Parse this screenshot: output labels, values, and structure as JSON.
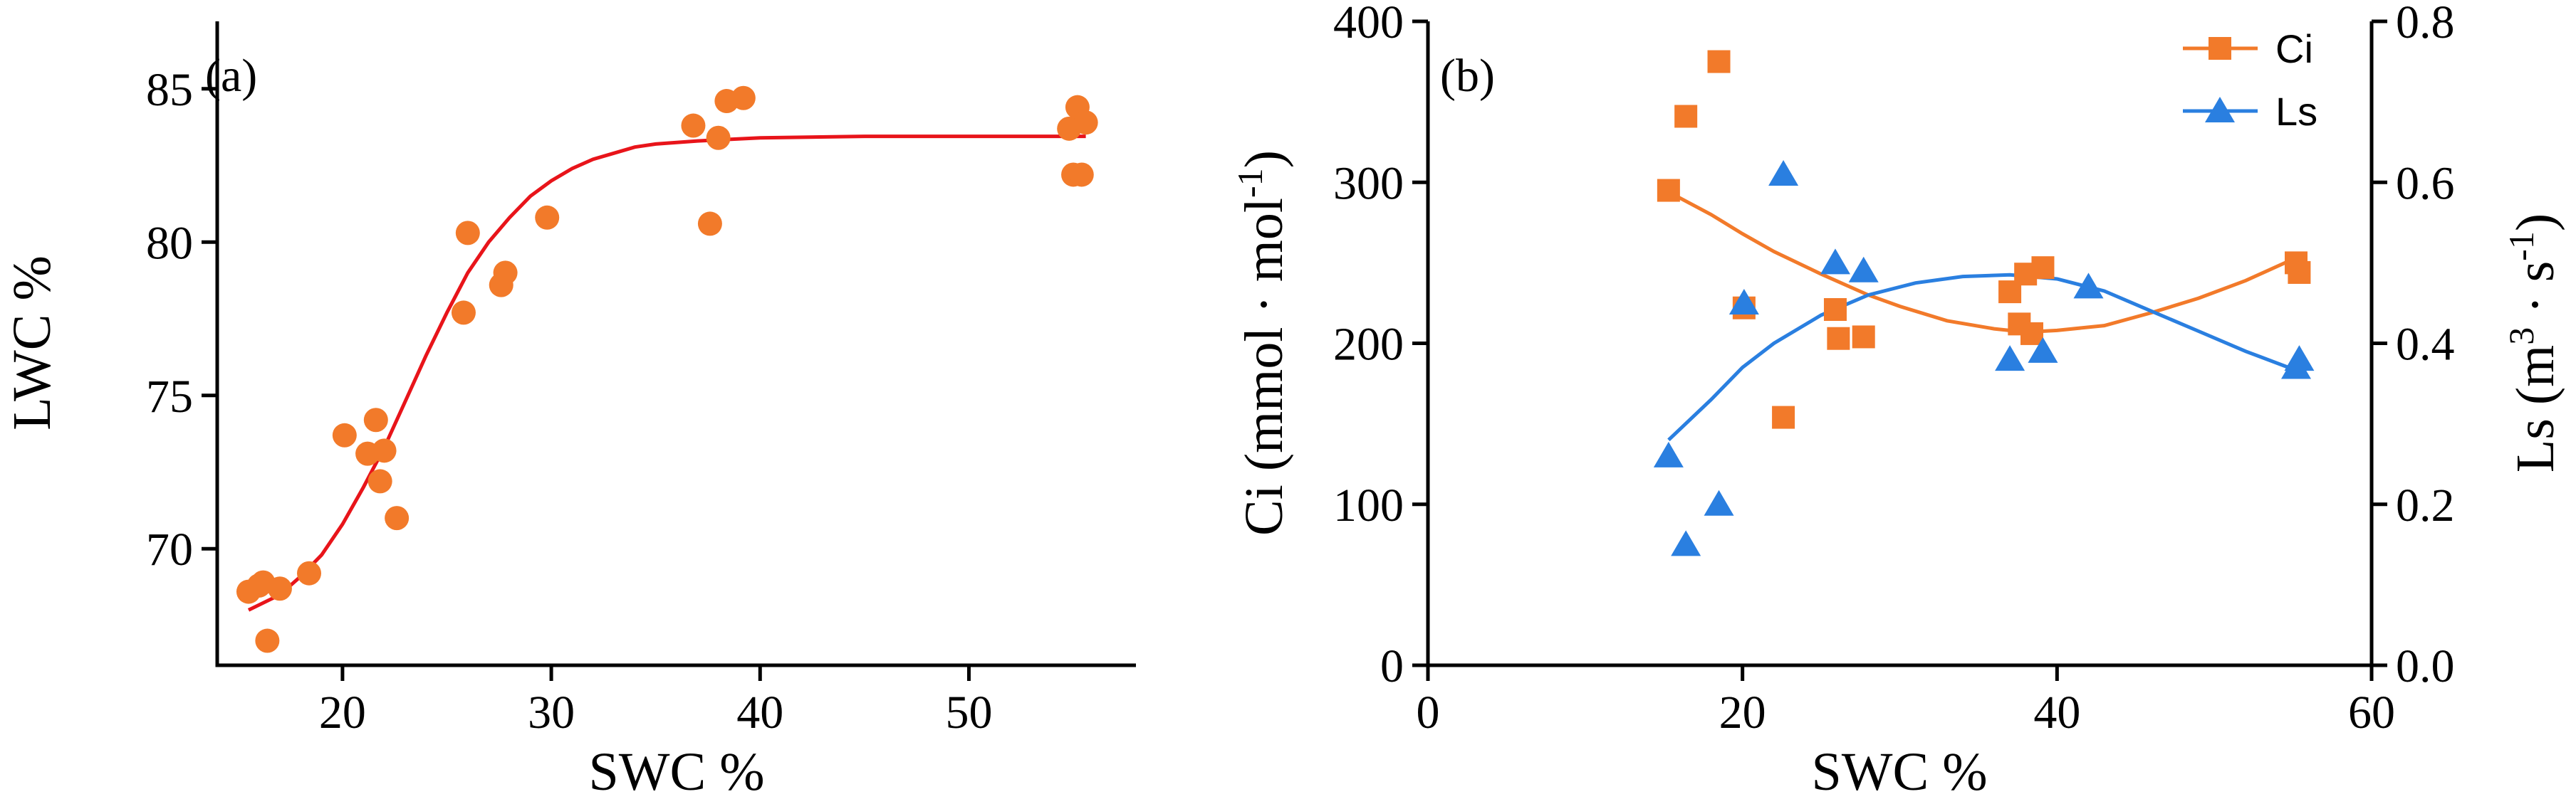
{
  "colors": {
    "orange": "#F27A2A",
    "blue": "#2A7FE0",
    "red": "#E8141A",
    "axis": "#000000"
  },
  "chart_data": [
    {
      "type": "scatter",
      "panel_label": "(a)",
      "xlabel": "SWC %",
      "ylabel": "LWC %",
      "xlim": [
        14,
        58
      ],
      "ylim": [
        66.2,
        87.2
      ],
      "xticks": [
        20,
        30,
        40,
        50
      ],
      "yticks": [
        70,
        75,
        80,
        85
      ],
      "grid": false,
      "series": [
        {
          "marker": "circle",
          "color": "#F27A2A",
          "points": [
            [
              15.5,
              68.6
            ],
            [
              16.0,
              68.8
            ],
            [
              16.4,
              67.0
            ],
            [
              16.2,
              68.9
            ],
            [
              17.0,
              68.7
            ],
            [
              18.4,
              69.2
            ],
            [
              20.1,
              73.7
            ],
            [
              21.2,
              73.1
            ],
            [
              21.6,
              74.2
            ],
            [
              21.8,
              72.2
            ],
            [
              22.0,
              73.2
            ],
            [
              22.6,
              71.0
            ],
            [
              25.8,
              77.7
            ],
            [
              26.0,
              80.3
            ],
            [
              27.6,
              78.6
            ],
            [
              27.8,
              79.0
            ],
            [
              29.8,
              80.8
            ],
            [
              36.8,
              83.8
            ],
            [
              37.6,
              80.6
            ],
            [
              38.0,
              83.4
            ],
            [
              38.4,
              84.6
            ],
            [
              39.2,
              84.7
            ],
            [
              54.8,
              83.7
            ],
            [
              55.0,
              82.2
            ],
            [
              55.2,
              84.4
            ],
            [
              55.4,
              82.2
            ],
            [
              55.6,
              83.9
            ]
          ]
        }
      ],
      "fit": {
        "color": "#E8141A",
        "points": [
          [
            15.5,
            68.0
          ],
          [
            17,
            68.5
          ],
          [
            18,
            69.1
          ],
          [
            19,
            69.8
          ],
          [
            20,
            70.8
          ],
          [
            21,
            72.0
          ],
          [
            22,
            73.3
          ],
          [
            23,
            74.8
          ],
          [
            24,
            76.3
          ],
          [
            25,
            77.7
          ],
          [
            26,
            79.0
          ],
          [
            27,
            80.0
          ],
          [
            28,
            80.8
          ],
          [
            29,
            81.5
          ],
          [
            30,
            82.0
          ],
          [
            31,
            82.4
          ],
          [
            32,
            82.7
          ],
          [
            33,
            82.9
          ],
          [
            34,
            83.1
          ],
          [
            35,
            83.2
          ],
          [
            37,
            83.3
          ],
          [
            40,
            83.4
          ],
          [
            45,
            83.45
          ],
          [
            50,
            83.45
          ],
          [
            55.6,
            83.45
          ]
        ]
      }
    },
    {
      "type": "scatter",
      "panel_label": "(b)",
      "xlabel": "SWC %",
      "ylabel_left": {
        "main": "Ci (mmol · mol",
        "sup": "-1",
        "end": ")"
      },
      "ylabel_right": {
        "main": "Ls (m",
        "sup": "3",
        "mid": " · s",
        "sup2": "-1",
        "end": ")"
      },
      "xlim": [
        0,
        60
      ],
      "ylim_left": [
        0,
        400
      ],
      "ylim_right": [
        0,
        0.8
      ],
      "xticks": [
        0,
        20,
        40,
        60
      ],
      "yticks_left": [
        0,
        100,
        200,
        300,
        400
      ],
      "yticks_right": [
        "0.0",
        "0.2",
        "0.4",
        "0.6",
        "0.8"
      ],
      "legend": {
        "placement": "top-right",
        "entries": [
          "Ci",
          "Ls"
        ]
      },
      "grid": false,
      "series": [
        {
          "name": "Ci",
          "axis": "left",
          "marker": "square",
          "color": "#F27A2A",
          "points": [
            [
              15.3,
              295
            ],
            [
              16.4,
              341
            ],
            [
              18.5,
              375
            ],
            [
              20.1,
              222
            ],
            [
              22.6,
              154
            ],
            [
              25.9,
              221
            ],
            [
              26.1,
              203
            ],
            [
              27.7,
              204
            ],
            [
              37.0,
              232
            ],
            [
              37.6,
              212
            ],
            [
              38.0,
              243
            ],
            [
              38.4,
              206
            ],
            [
              39.1,
              247
            ],
            [
              55.2,
              250
            ],
            [
              55.4,
              244
            ]
          ]
        },
        {
          "name": "Ls",
          "axis": "right",
          "marker": "triangle",
          "color": "#2A7FE0",
          "points": [
            [
              15.3,
              0.26
            ],
            [
              16.4,
              0.15
            ],
            [
              18.5,
              0.2
            ],
            [
              20.1,
              0.45
            ],
            [
              22.6,
              0.61
            ],
            [
              25.9,
              0.5
            ],
            [
              27.7,
              0.49
            ],
            [
              37.0,
              0.38
            ],
            [
              39.1,
              0.39
            ],
            [
              42.0,
              0.47
            ],
            [
              55.2,
              0.37
            ],
            [
              55.4,
              0.38
            ]
          ]
        }
      ],
      "fits": [
        {
          "series": "Ci",
          "axis": "left",
          "color": "#F27A2A",
          "points": [
            [
              15.3,
              294
            ],
            [
              18,
              280
            ],
            [
              20,
              268
            ],
            [
              22,
              257
            ],
            [
              25,
              243
            ],
            [
              28,
              230
            ],
            [
              30,
              223
            ],
            [
              33,
              214
            ],
            [
              36,
              209
            ],
            [
              38,
              207
            ],
            [
              40,
              208
            ],
            [
              43,
              211
            ],
            [
              46,
              219
            ],
            [
              49,
              228
            ],
            [
              52,
              239
            ],
            [
              55.4,
              254
            ]
          ]
        },
        {
          "series": "Ls",
          "axis": "right",
          "color": "#2A7FE0",
          "points": [
            [
              15.3,
              0.28
            ],
            [
              18,
              0.33
            ],
            [
              20,
              0.37
            ],
            [
              22,
              0.4
            ],
            [
              25,
              0.435
            ],
            [
              28,
              0.46
            ],
            [
              31,
              0.475
            ],
            [
              34,
              0.483
            ],
            [
              37,
              0.485
            ],
            [
              40,
              0.48
            ],
            [
              43,
              0.465
            ],
            [
              46,
              0.44
            ],
            [
              49,
              0.415
            ],
            [
              52,
              0.39
            ],
            [
              55.4,
              0.365
            ]
          ]
        }
      ]
    }
  ]
}
